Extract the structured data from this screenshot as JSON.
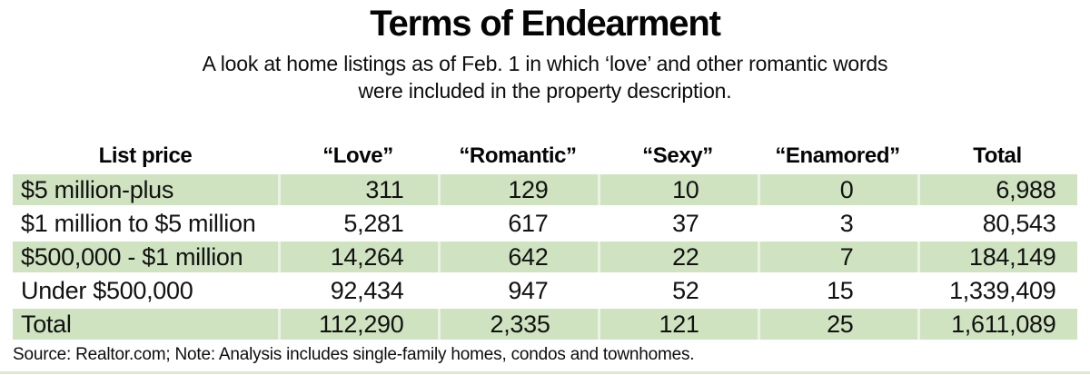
{
  "title": "Terms of Endearment",
  "subtitle": {
    "line1": "A look at home listings as of Feb. 1 in which ‘love’ and other romantic words",
    "line2": "were included in the property description."
  },
  "chart_data": {
    "type": "table",
    "title": "Terms of Endearment",
    "subtitle": "A look at home listings as of Feb. 1 in which ‘love’ and other romantic words were included in the property description.",
    "columns": [
      "List price",
      "“Love”",
      "“Romantic”",
      "“Sexy”",
      "“Enamored”",
      "Total"
    ],
    "rows": [
      {
        "label": "$5 million-plus",
        "values": [
          "311",
          "129",
          "10",
          "0",
          "6,988"
        ],
        "values_numeric": [
          311,
          129,
          10,
          0,
          6988
        ]
      },
      {
        "label": "$1 million to $5 million",
        "values": [
          "5,281",
          "617",
          "37",
          "3",
          "80,543"
        ],
        "values_numeric": [
          5281,
          617,
          37,
          3,
          80543
        ]
      },
      {
        "label": "$500,000 - $1 million",
        "values": [
          "14,264",
          "642",
          "22",
          "7",
          "184,149"
        ],
        "values_numeric": [
          14264,
          642,
          22,
          7,
          184149
        ]
      },
      {
        "label": "Under $500,000",
        "values": [
          "92,434",
          "947",
          "52",
          "15",
          "1,339,409"
        ],
        "values_numeric": [
          92434,
          947,
          52,
          15,
          1339409
        ]
      },
      {
        "label": "Total",
        "values": [
          "112,290",
          "2,335",
          "121",
          "25",
          "1,611,089"
        ],
        "values_numeric": [
          112290,
          2335,
          121,
          25,
          1611089
        ]
      }
    ],
    "row_stripe_pattern": [
      "green",
      "white",
      "green",
      "white",
      "green"
    ],
    "layout": {
      "grid": false,
      "legend": "none",
      "value_alignment": "right-aligned, widest value centered per column"
    }
  },
  "source_note": "Source: Realtor.com; Note: Analysis includes single-family homes, condos and townhomes.",
  "colors": {
    "row_green": "#cfe3c1",
    "column_separator": "rgba(255,255,255,0.55)",
    "text": "#121212",
    "background": "#ffffff"
  }
}
